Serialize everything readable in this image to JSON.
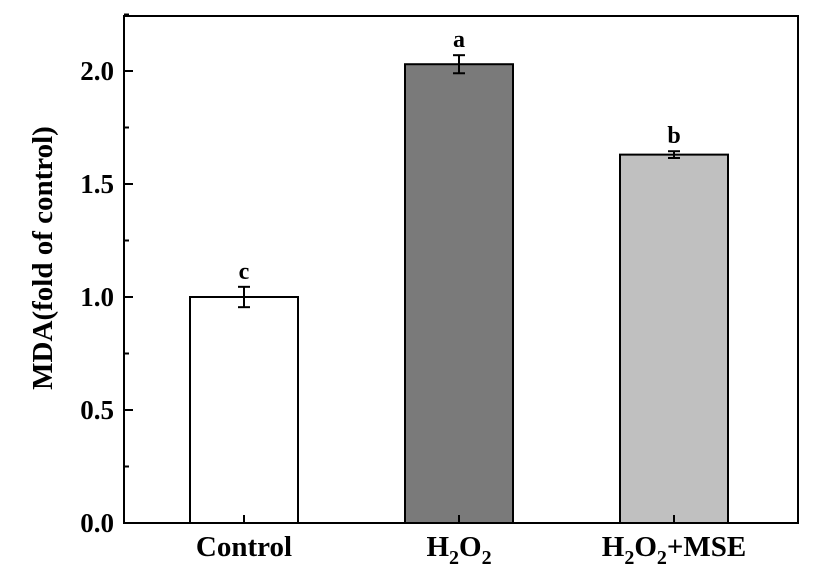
{
  "chart_data": {
    "type": "bar",
    "categories": [
      "Control",
      "H2O2",
      "H2O2+MSE"
    ],
    "category_labels": [
      [
        {
          "t": "Control",
          "sub": false
        }
      ],
      [
        {
          "t": "H",
          "sub": false
        },
        {
          "t": "2",
          "sub": true
        },
        {
          "t": "O",
          "sub": false
        },
        {
          "t": "2",
          "sub": true
        }
      ],
      [
        {
          "t": "H",
          "sub": false
        },
        {
          "t": "2",
          "sub": true
        },
        {
          "t": "O",
          "sub": false
        },
        {
          "t": "2",
          "sub": true
        },
        {
          "t": "+MSE",
          "sub": false
        }
      ]
    ],
    "values": [
      1.0,
      2.03,
      1.63
    ],
    "errors": [
      0.045,
      0.04,
      0.015
    ],
    "significance": [
      "c",
      "a",
      "b"
    ],
    "bar_colors": [
      "#ffffff",
      "#7a7a7a",
      "#c0c0c0"
    ],
    "xlabel": "",
    "ylabel": "MDA(fold of control)",
    "ylim": [
      0.0,
      2.3
    ],
    "yticks": [
      "0.0",
      "0.5",
      "1.0",
      "1.5",
      "2.0"
    ],
    "grid": false
  }
}
